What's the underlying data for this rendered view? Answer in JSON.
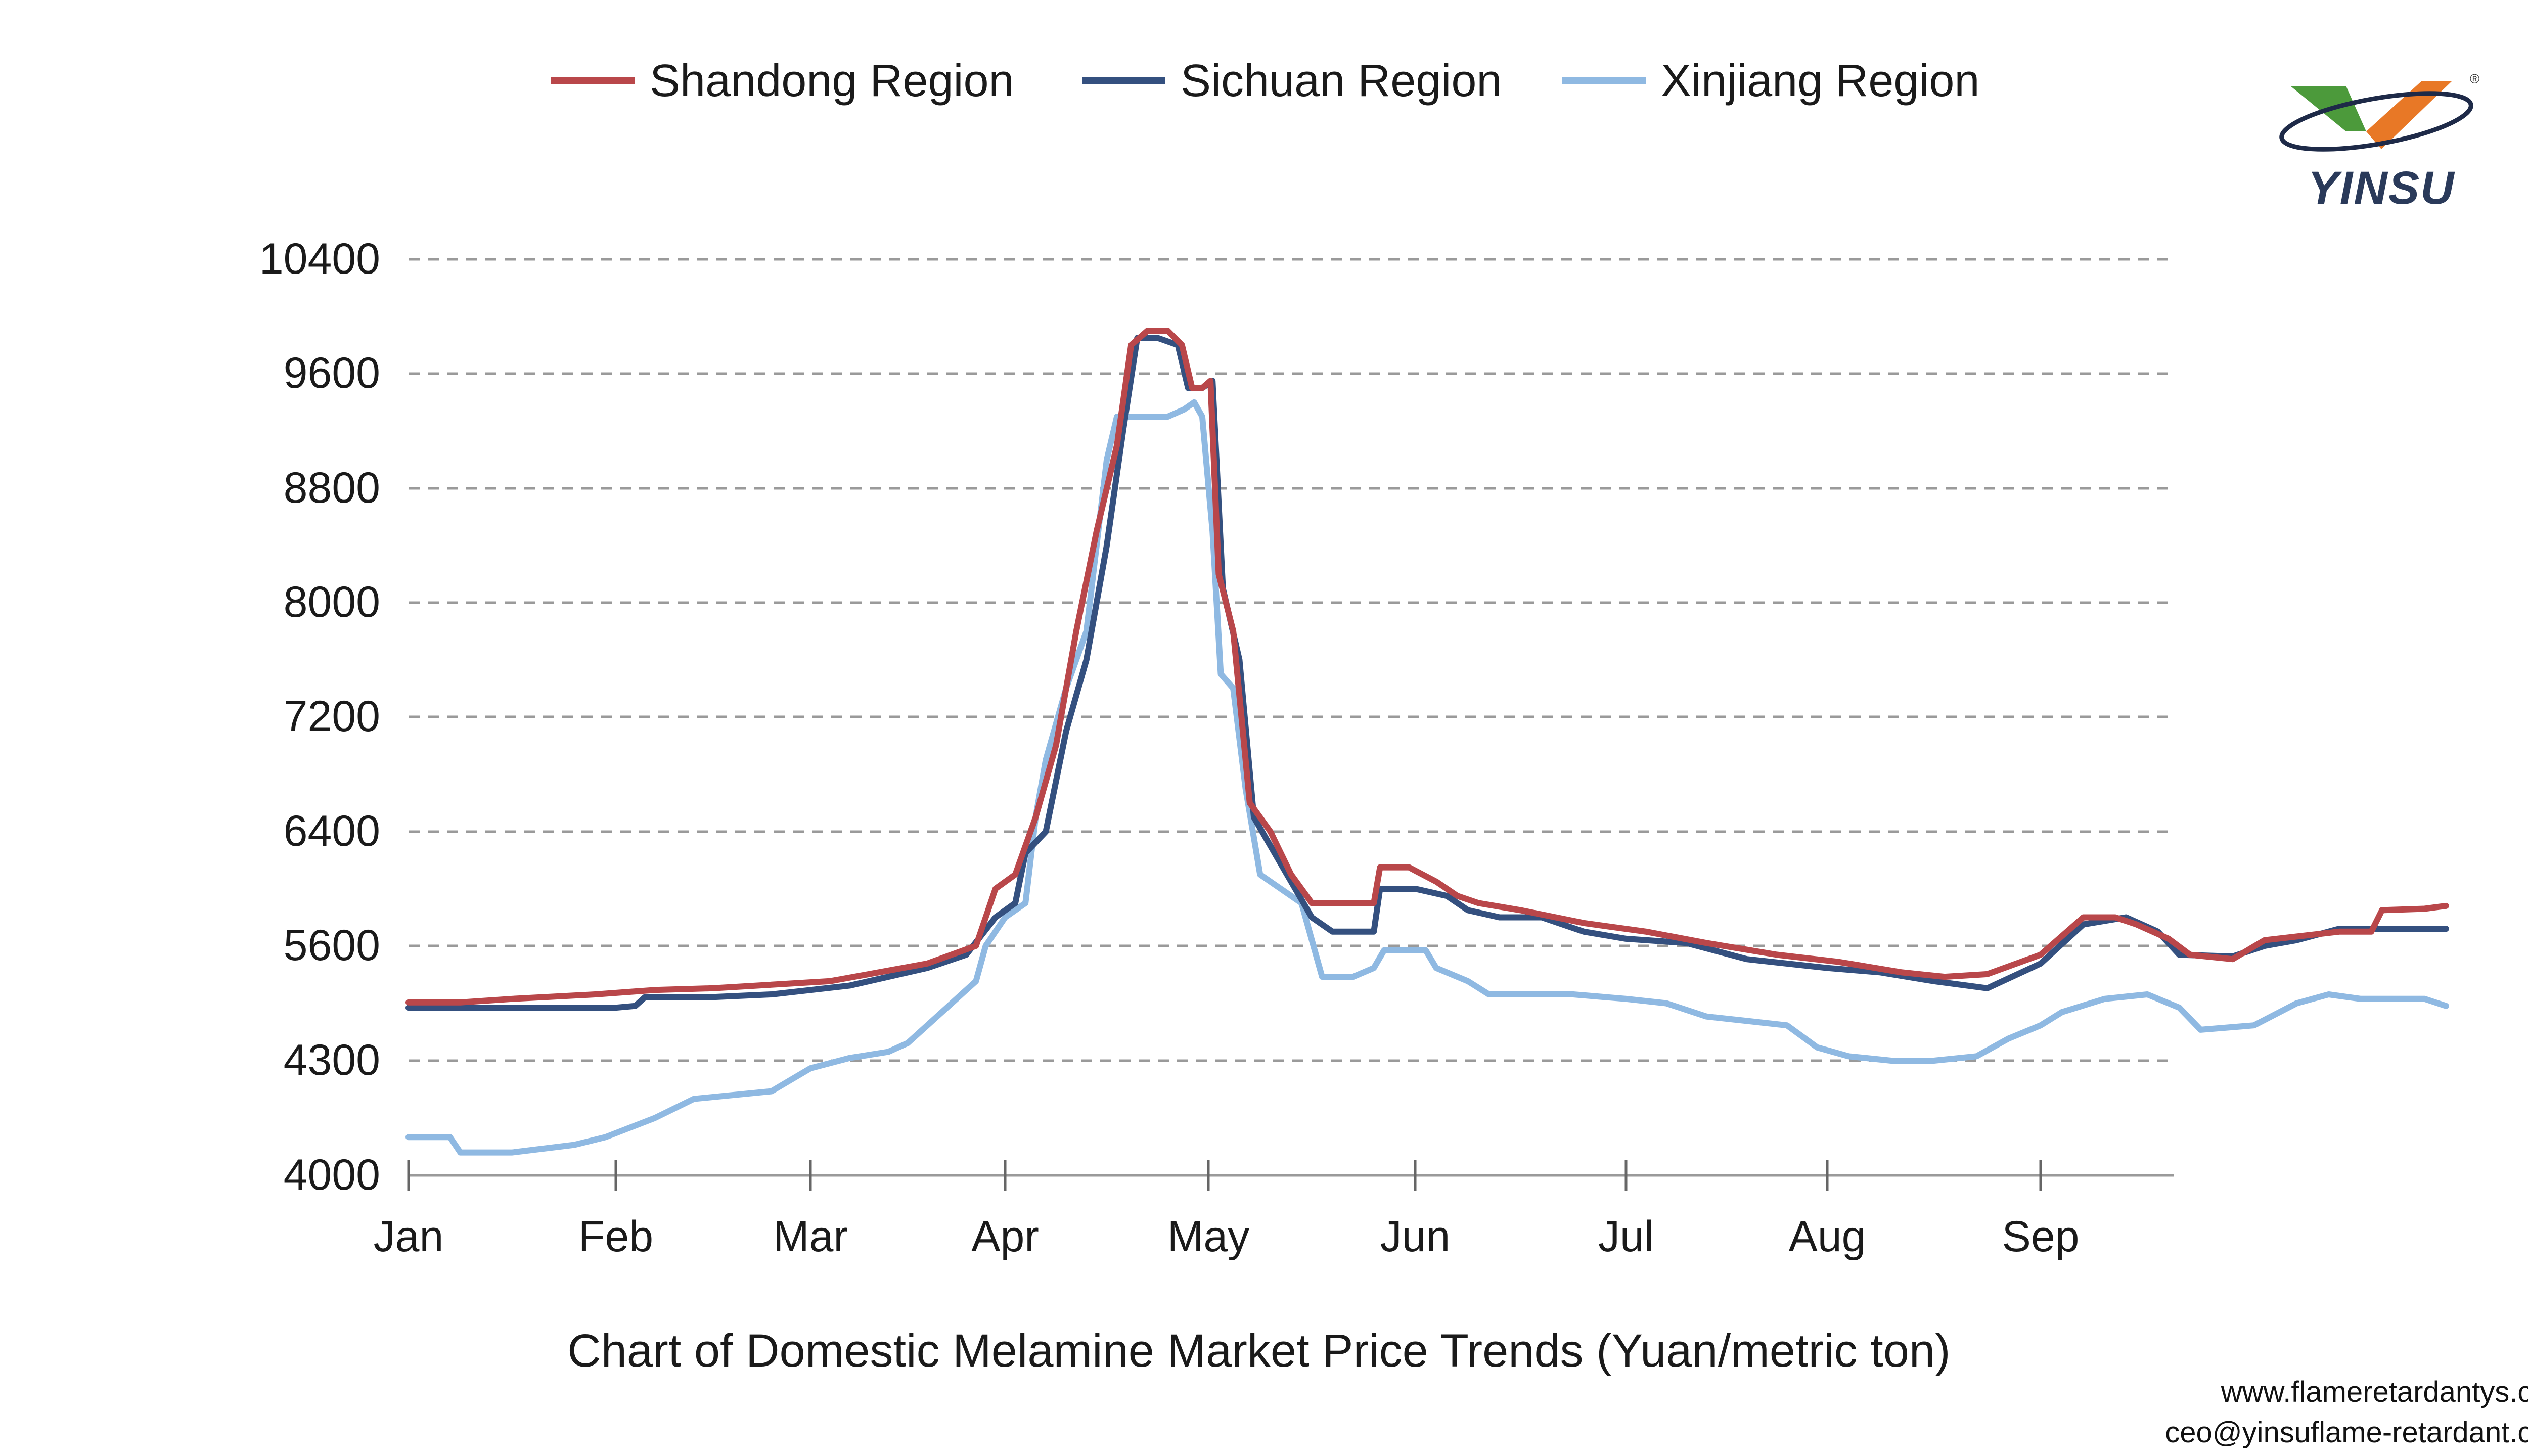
{
  "caption": "Chart of Domestic Melamine Market Price Trends (Yuan/metric ton)",
  "contact": {
    "website": "www.flameretardantys.com",
    "email": "ceo@yinsuflame-retardant.com"
  },
  "logo": {
    "text": "YINSU",
    "mark": "®"
  },
  "chart_data": {
    "type": "line",
    "title": "",
    "xlabel": "",
    "ylabel": "",
    "y_ticks": [
      4000,
      4300,
      5600,
      6400,
      7200,
      8000,
      8800,
      9600,
      10400
    ],
    "x_ticks": [
      "Jan",
      "Feb",
      "Mar",
      "Apr",
      "May",
      "Jun",
      "Jul",
      "Aug",
      "Sep"
    ],
    "x_unit": "month index (Jan=0)",
    "grid": "horizontal dashed",
    "legend_position": "top",
    "series": [
      {
        "name": "Shandong Region",
        "color": "#b9474a",
        "points": [
          [
            0,
            4960
          ],
          [
            0.25,
            4960
          ],
          [
            0.5,
            5000
          ],
          [
            0.9,
            5050
          ],
          [
            1.2,
            5100
          ],
          [
            1.5,
            5120
          ],
          [
            1.8,
            5160
          ],
          [
            2.1,
            5200
          ],
          [
            2.3,
            5280
          ],
          [
            2.6,
            5400
          ],
          [
            2.85,
            5600
          ],
          [
            2.95,
            6000
          ],
          [
            3.05,
            6100
          ],
          [
            3.15,
            6500
          ],
          [
            3.25,
            7000
          ],
          [
            3.35,
            7800
          ],
          [
            3.45,
            8500
          ],
          [
            3.55,
            9100
          ],
          [
            3.62,
            9800
          ],
          [
            3.7,
            9900
          ],
          [
            3.8,
            9900
          ],
          [
            3.87,
            9800
          ],
          [
            3.92,
            9500
          ],
          [
            3.97,
            9500
          ],
          [
            4.01,
            9550
          ],
          [
            4.05,
            8200
          ],
          [
            4.12,
            7800
          ],
          [
            4.2,
            6600
          ],
          [
            4.3,
            6400
          ],
          [
            4.4,
            6100
          ],
          [
            4.5,
            5900
          ],
          [
            4.7,
            5900
          ],
          [
            4.8,
            5900
          ],
          [
            4.83,
            6150
          ],
          [
            4.97,
            6150
          ],
          [
            5.1,
            6050
          ],
          [
            5.2,
            5950
          ],
          [
            5.3,
            5900
          ],
          [
            5.5,
            5850
          ],
          [
            5.8,
            5760
          ],
          [
            6.1,
            5700
          ],
          [
            6.4,
            5620
          ],
          [
            6.75,
            5500
          ],
          [
            7.05,
            5420
          ],
          [
            7.35,
            5300
          ],
          [
            7.55,
            5250
          ],
          [
            7.75,
            5280
          ],
          [
            8.0,
            5500
          ],
          [
            8.2,
            5800
          ],
          [
            8.35,
            5800
          ],
          [
            8.45,
            5750
          ],
          [
            8.6,
            5650
          ],
          [
            8.7,
            5500
          ],
          [
            8.9,
            5450
          ],
          [
            9.05,
            5640
          ],
          [
            9.4,
            5700
          ],
          [
            9.55,
            5700
          ],
          [
            9.6,
            5850
          ],
          [
            9.8,
            5860
          ],
          [
            9.9,
            5880
          ]
        ]
      },
      {
        "name": "Sichuan Region",
        "color": "#34507f",
        "points": [
          [
            0,
            4900
          ],
          [
            0.3,
            4900
          ],
          [
            0.7,
            4900
          ],
          [
            1.0,
            4900
          ],
          [
            1.1,
            4920
          ],
          [
            1.15,
            5020
          ],
          [
            1.5,
            5020
          ],
          [
            1.8,
            5050
          ],
          [
            2.0,
            5100
          ],
          [
            2.2,
            5150
          ],
          [
            2.4,
            5250
          ],
          [
            2.6,
            5350
          ],
          [
            2.8,
            5500
          ],
          [
            2.95,
            5800
          ],
          [
            3.05,
            5900
          ],
          [
            3.1,
            6250
          ],
          [
            3.2,
            6400
          ],
          [
            3.3,
            7100
          ],
          [
            3.4,
            7600
          ],
          [
            3.5,
            8400
          ],
          [
            3.58,
            9200
          ],
          [
            3.65,
            9850
          ],
          [
            3.75,
            9850
          ],
          [
            3.85,
            9800
          ],
          [
            3.9,
            9500
          ],
          [
            3.97,
            9500
          ],
          [
            4.02,
            9550
          ],
          [
            4.07,
            8100
          ],
          [
            4.15,
            7600
          ],
          [
            4.22,
            6500
          ],
          [
            4.3,
            6300
          ],
          [
            4.4,
            6050
          ],
          [
            4.5,
            5800
          ],
          [
            4.6,
            5700
          ],
          [
            4.8,
            5700
          ],
          [
            4.83,
            6000
          ],
          [
            5.0,
            6000
          ],
          [
            5.15,
            5950
          ],
          [
            5.25,
            5850
          ],
          [
            5.4,
            5800
          ],
          [
            5.6,
            5800
          ],
          [
            5.8,
            5700
          ],
          [
            6.0,
            5650
          ],
          [
            6.3,
            5620
          ],
          [
            6.6,
            5450
          ],
          [
            7.0,
            5350
          ],
          [
            7.25,
            5300
          ],
          [
            7.5,
            5200
          ],
          [
            7.75,
            5120
          ],
          [
            8.0,
            5400
          ],
          [
            8.2,
            5750
          ],
          [
            8.4,
            5800
          ],
          [
            8.55,
            5700
          ],
          [
            8.65,
            5500
          ],
          [
            8.9,
            5480
          ],
          [
            9.05,
            5600
          ],
          [
            9.2,
            5640
          ],
          [
            9.4,
            5720
          ],
          [
            9.9,
            5720
          ]
        ]
      },
      {
        "name": "Xinjiang Region",
        "color": "#8fb9e2",
        "points": [
          [
            0,
            4100
          ],
          [
            0.2,
            4100
          ],
          [
            0.25,
            4060
          ],
          [
            0.5,
            4060
          ],
          [
            0.8,
            4080
          ],
          [
            0.95,
            4100
          ],
          [
            1.2,
            4150
          ],
          [
            1.4,
            4200
          ],
          [
            1.8,
            4220
          ],
          [
            2.0,
            4280
          ],
          [
            2.2,
            4330
          ],
          [
            2.4,
            4400
          ],
          [
            2.5,
            4500
          ],
          [
            2.65,
            4800
          ],
          [
            2.75,
            5000
          ],
          [
            2.85,
            5200
          ],
          [
            2.9,
            5600
          ],
          [
            3.0,
            5800
          ],
          [
            3.1,
            5900
          ],
          [
            3.15,
            6500
          ],
          [
            3.2,
            6900
          ],
          [
            3.3,
            7400
          ],
          [
            3.4,
            7800
          ],
          [
            3.45,
            8400
          ],
          [
            3.5,
            9000
          ],
          [
            3.55,
            9300
          ],
          [
            3.8,
            9300
          ],
          [
            3.88,
            9350
          ],
          [
            3.93,
            9400
          ],
          [
            3.97,
            9300
          ],
          [
            4.02,
            8500
          ],
          [
            4.06,
            7500
          ],
          [
            4.12,
            7400
          ],
          [
            4.18,
            6700
          ],
          [
            4.25,
            6100
          ],
          [
            4.35,
            6000
          ],
          [
            4.45,
            5900
          ],
          [
            4.55,
            5250
          ],
          [
            4.7,
            5250
          ],
          [
            4.8,
            5350
          ],
          [
            4.85,
            5550
          ],
          [
            5.05,
            5550
          ],
          [
            5.1,
            5350
          ],
          [
            5.25,
            5200
          ],
          [
            5.35,
            5050
          ],
          [
            5.5,
            5050
          ],
          [
            5.75,
            5050
          ],
          [
            6.0,
            5000
          ],
          [
            6.2,
            4950
          ],
          [
            6.4,
            4800
          ],
          [
            6.6,
            4750
          ],
          [
            6.8,
            4700
          ],
          [
            6.95,
            4450
          ],
          [
            7.1,
            4350
          ],
          [
            7.3,
            4300
          ],
          [
            7.5,
            4300
          ],
          [
            7.7,
            4350
          ],
          [
            7.85,
            4550
          ],
          [
            8.0,
            4700
          ],
          [
            8.1,
            4850
          ],
          [
            8.3,
            5000
          ],
          [
            8.5,
            5050
          ],
          [
            8.65,
            4900
          ],
          [
            8.75,
            4650
          ],
          [
            9.0,
            4700
          ],
          [
            9.2,
            4950
          ],
          [
            9.35,
            5050
          ],
          [
            9.5,
            5000
          ],
          [
            9.7,
            5000
          ],
          [
            9.8,
            5000
          ],
          [
            9.9,
            4920
          ]
        ]
      }
    ]
  }
}
